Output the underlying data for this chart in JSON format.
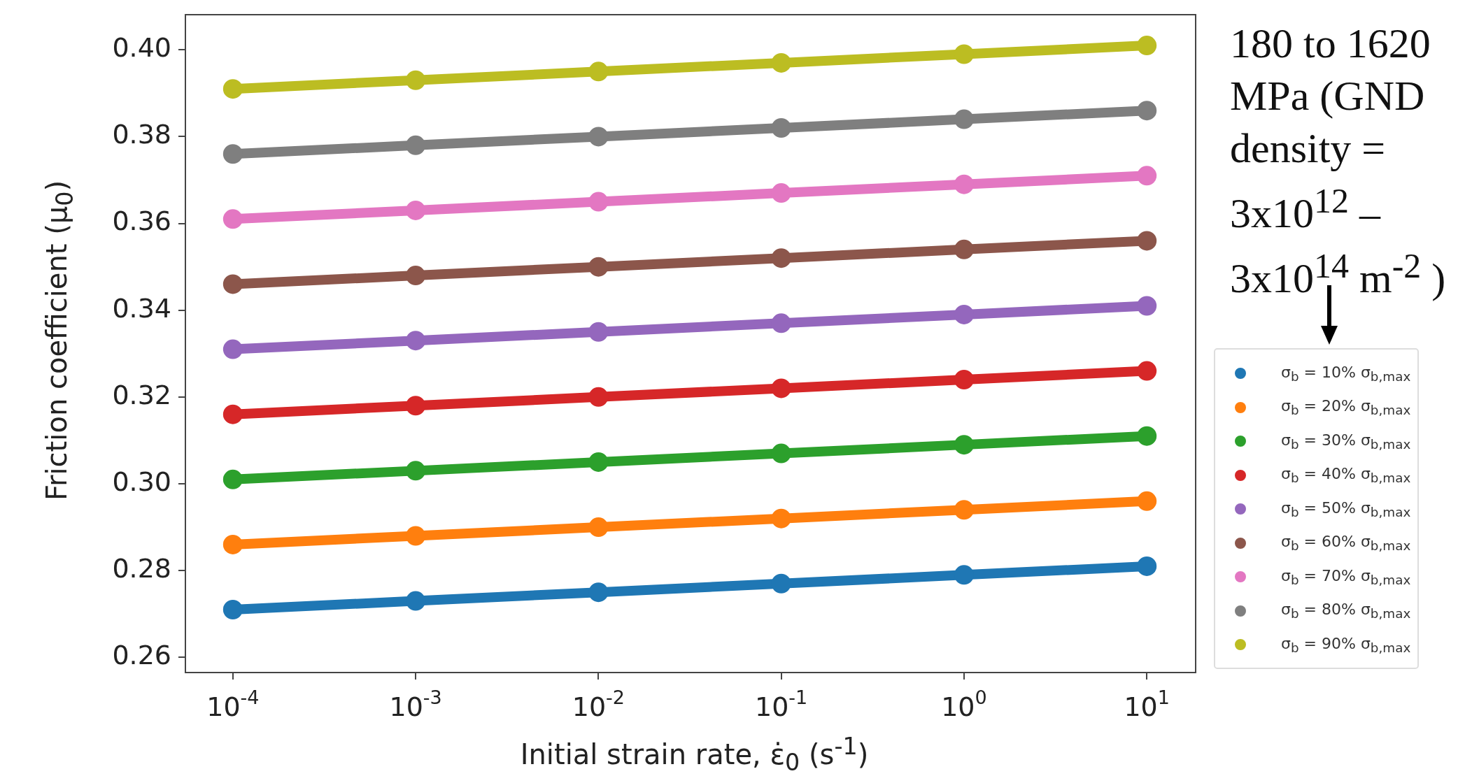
{
  "chart_data": {
    "type": "line",
    "xlabel": "Initial strain rate, ε̇$_{0}$ (s$^{-1}$)",
    "ylabel": "Friction coefficient (μ$_{0}$)",
    "x": [
      0.0001,
      0.001,
      0.01,
      0.1,
      1,
      10
    ],
    "series": [
      {
        "name": "σ$_{b}$ = 10% σ$_{b,max}$",
        "color": "#1f77b4",
        "values": [
          0.271,
          0.273,
          0.275,
          0.277,
          0.279,
          0.281
        ]
      },
      {
        "name": "σ$_{b}$ = 20% σ$_{b,max}$",
        "color": "#ff7f0e",
        "values": [
          0.286,
          0.288,
          0.29,
          0.292,
          0.294,
          0.296
        ]
      },
      {
        "name": "σ$_{b}$ = 30% σ$_{b,max}$",
        "color": "#2ca02c",
        "values": [
          0.301,
          0.303,
          0.305,
          0.307,
          0.309,
          0.311
        ]
      },
      {
        "name": "σ$_{b}$ = 40% σ$_{b,max}$",
        "color": "#d62728",
        "values": [
          0.316,
          0.318,
          0.32,
          0.322,
          0.324,
          0.326
        ]
      },
      {
        "name": "σ$_{b}$ = 50% σ$_{b,max}$",
        "color": "#9467bd",
        "values": [
          0.331,
          0.333,
          0.335,
          0.337,
          0.339,
          0.341
        ]
      },
      {
        "name": "σ$_{b}$ = 60% σ$_{b,max}$",
        "color": "#8c564b",
        "values": [
          0.346,
          0.348,
          0.35,
          0.352,
          0.354,
          0.356
        ]
      },
      {
        "name": "σ$_{b}$ = 70% σ$_{b,max}$",
        "color": "#e377c2",
        "values": [
          0.361,
          0.363,
          0.365,
          0.367,
          0.369,
          0.371
        ]
      },
      {
        "name": "σ$_{b}$ = 80% σ$_{b,max}$",
        "color": "#7f7f7f",
        "values": [
          0.376,
          0.378,
          0.38,
          0.382,
          0.384,
          0.386
        ]
      },
      {
        "name": "σ$_{b}$ = 90% σ$_{b,max}$",
        "color": "#bcbd22",
        "values": [
          0.391,
          0.393,
          0.395,
          0.397,
          0.399,
          0.401
        ]
      }
    ],
    "log": "x",
    "xlim": [
      5.5e-05,
      18.5
    ],
    "xticks": [
      {
        "value": 0.0001,
        "label": "10$^{-4}$"
      },
      {
        "value": 0.001,
        "label": "10$^{-3}$"
      },
      {
        "value": 0.01,
        "label": "10$^{-2}$"
      },
      {
        "value": 0.1,
        "label": "10$^{-1}$"
      },
      {
        "value": 1,
        "label": "10$^{0}$"
      },
      {
        "value": 10,
        "label": "10$^{1}$"
      }
    ],
    "ylim": [
      0.2565,
      0.4081
    ],
    "yticks": [
      0.26,
      0.28,
      {
        "value": 0.3,
        "label": "0.30"
      },
      0.32,
      0.34,
      0.36,
      0.38,
      {
        "value": 0.4,
        "label": "0.40"
      }
    ],
    "grid": false,
    "legend": "right",
    "marker": "circle",
    "line_style": "solid",
    "annotations": [
      "180 to 1620 MPa (GND density = 3x10$^{12}$ – 3x10$^{14}$ m$^{-2}$ )"
    ]
  }
}
